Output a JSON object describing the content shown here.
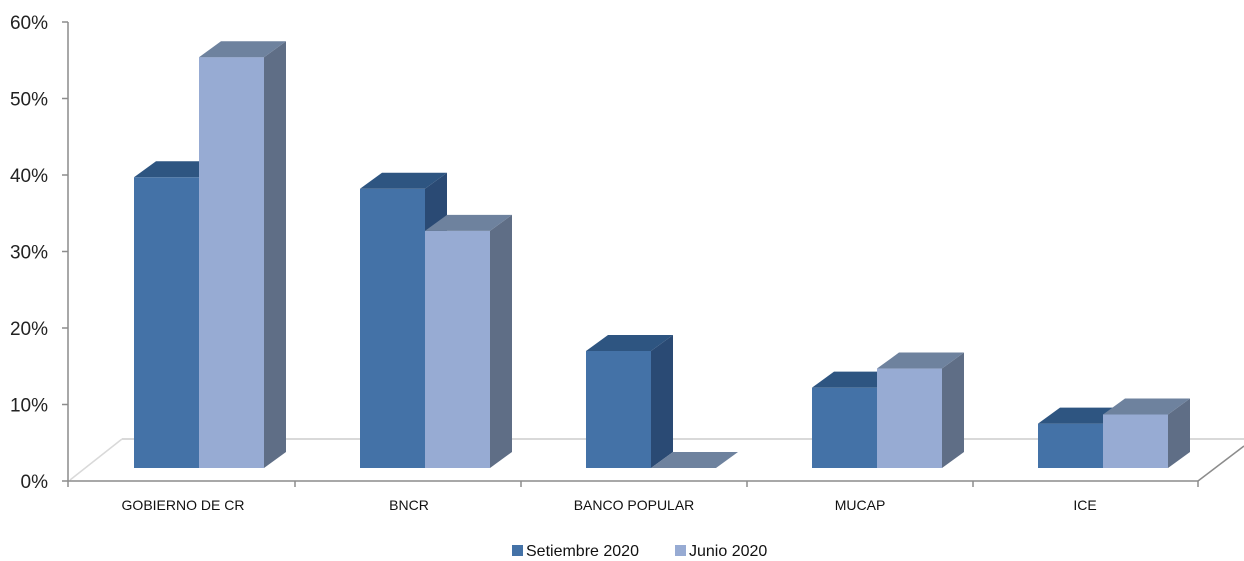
{
  "chart_data": {
    "type": "bar",
    "title": "",
    "xlabel": "",
    "ylabel": "",
    "categories": [
      "GOBIERNO DE CR",
      "BNCR",
      "BANCO POPULAR",
      "MUCAP",
      "ICE"
    ],
    "series": [
      {
        "name": "Setiembre 2020",
        "values": [
          38,
          36.5,
          15.3,
          10.5,
          5.8
        ]
      },
      {
        "name": "Junio 2020",
        "values": [
          53.7,
          31,
          0,
          13,
          7
        ]
      }
    ],
    "ylim": [
      0,
      60
    ],
    "yticks": [
      "0%",
      "10%",
      "20%",
      "30%",
      "40%",
      "50%",
      "60%"
    ],
    "three_d": true,
    "grid": false,
    "legend_position": "bottom",
    "colors": {
      "Setiembre 2020": {
        "front": "#4472a7",
        "top": "#2e5581",
        "side": "#2a4a74"
      },
      "Junio 2020": {
        "front": "#97abd3",
        "top": "#6e829e",
        "side": "#5f6e86"
      },
      "axis": "#8c8c8c",
      "floor": "#d9d9d9"
    }
  }
}
